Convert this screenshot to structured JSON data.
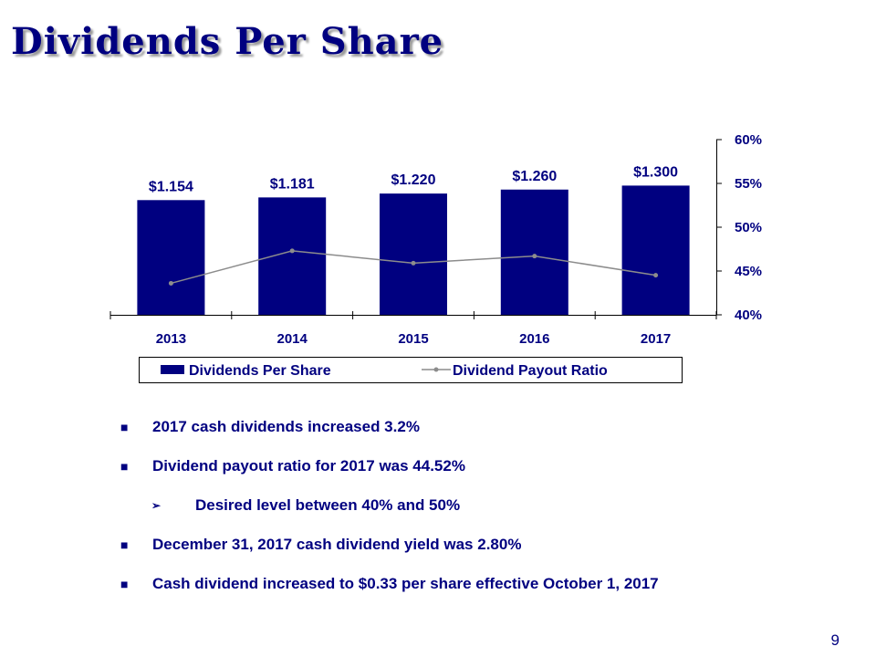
{
  "slide": {
    "title": "Dividends Per Share",
    "page_number": "9"
  },
  "colors": {
    "navy": "#000080",
    "line": "#8c8c8c"
  },
  "chart_data": {
    "type": "bar",
    "title": "",
    "categories": [
      "2013",
      "2014",
      "2015",
      "2016",
      "2017"
    ],
    "series": [
      {
        "name": "Dividends Per Share",
        "type": "bar",
        "axis": "left",
        "values": [
          1.154,
          1.181,
          1.22,
          1.26,
          1.3
        ],
        "value_labels": [
          "$1.154",
          "$1.181",
          "$1.220",
          "$1.260",
          "$1.300"
        ]
      },
      {
        "name": "Dividend Payout Ratio",
        "type": "line",
        "axis": "right",
        "values": [
          43.6,
          47.3,
          45.9,
          46.7,
          44.52
        ]
      }
    ],
    "y_right": {
      "range": [
        40,
        60
      ],
      "ticks": [
        60,
        55,
        50,
        45,
        40
      ],
      "tick_labels": [
        "60%",
        "55%",
        "50%",
        "45%",
        "40%"
      ]
    },
    "grid": false,
    "legend_position": "bottom"
  },
  "bullets": [
    {
      "text": "2017 cash dividends increased 3.2%",
      "level": 1
    },
    {
      "text": "Dividend payout ratio for 2017 was 44.52%",
      "level": 1
    },
    {
      "text": "Desired level between 40% and 50%",
      "level": 2
    },
    {
      "text": "December 31, 2017 cash dividend yield was 2.80%",
      "level": 1
    },
    {
      "text": "Cash dividend increased to $0.33 per share effective October 1, 2017",
      "level": 1
    }
  ]
}
